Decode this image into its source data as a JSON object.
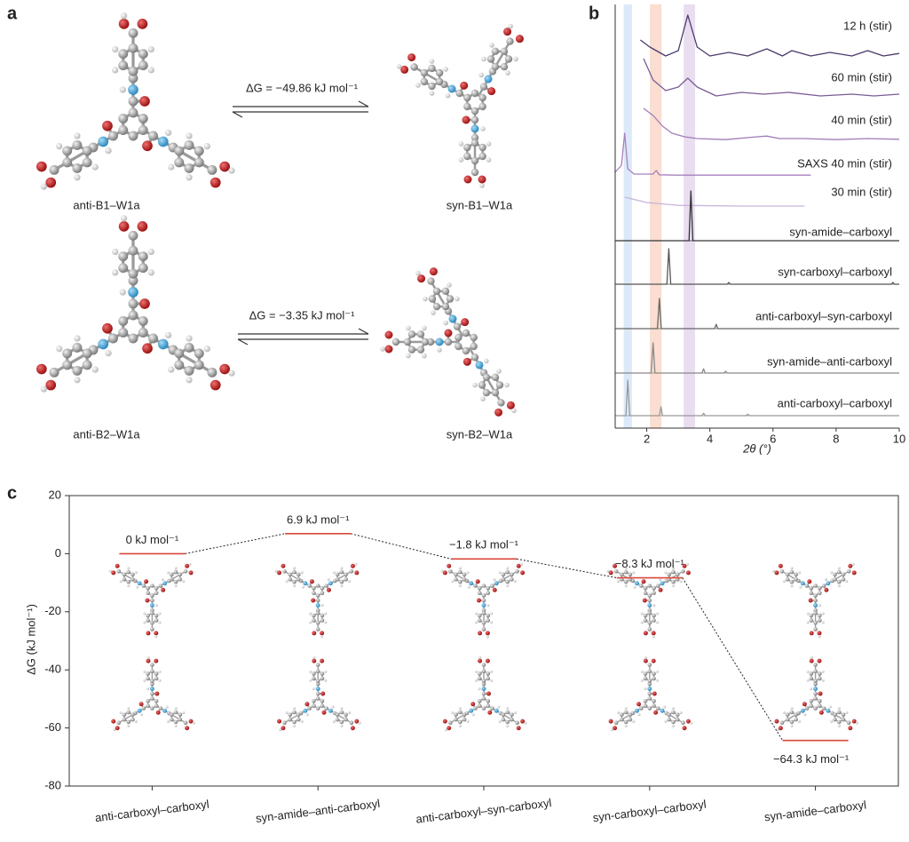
{
  "panel_labels": [
    "a",
    "b",
    "c"
  ],
  "reactions": [
    {
      "left": "anti-B1–W1a",
      "right": "syn-B1–W1a",
      "energy": "ΔG = −49.86 kJ mol⁻¹"
    },
    {
      "left": "anti-B2–W1a",
      "right": "syn-B2–W1a",
      "energy": "ΔG = −3.35 kJ mol⁻¹"
    }
  ],
  "chart_data": [
    {
      "type": "line",
      "xlabel": "2θ (°)",
      "xlim": [
        1,
        10
      ],
      "xticks": [
        2,
        4,
        6,
        8,
        10
      ],
      "bands": [
        {
          "x": [
            1.27,
            1.53
          ],
          "color": "#d3e3f6"
        },
        {
          "x": [
            2.1,
            2.47
          ],
          "color": "#f8d6c6"
        },
        {
          "x": [
            3.17,
            3.53
          ],
          "color": "#e2d6ec"
        }
      ],
      "series": [
        {
          "name": "12 h (stir)",
          "color": "#4b3a6b",
          "x": [
            1.8,
            2.1,
            2.6,
            3.0,
            3.3,
            3.6,
            4.0,
            4.6,
            5.2,
            5.8,
            6.3,
            6.6,
            7.2,
            7.8,
            8.5,
            9.0,
            9.5,
            10
          ],
          "values": [
            0.5,
            0.3,
            0.05,
            0.2,
            1.2,
            0.3,
            0.05,
            0.15,
            0.05,
            0.25,
            0.05,
            0.2,
            0.05,
            0.15,
            0.05,
            0.2,
            0.05,
            0.12
          ]
        },
        {
          "name": "60 min (stir)",
          "color": "#7a5c96",
          "x": [
            1.9,
            2.2,
            2.6,
            3.0,
            3.3,
            3.6,
            4.2,
            5.0,
            5.7,
            6.5,
            7.5,
            8.5,
            9.2,
            10
          ],
          "values": [
            1.1,
            0.5,
            0.2,
            0.3,
            0.55,
            0.3,
            0.05,
            0.15,
            0.1,
            0.15,
            0.05,
            0.1,
            0.05,
            0.1
          ]
        },
        {
          "name": "40 min (stir)",
          "color": "#a07cb8",
          "x": [
            1.9,
            2.2,
            2.5,
            2.8,
            3.2,
            3.6,
            4.5,
            5.5,
            5.8,
            6.2,
            7.0,
            8.0,
            9.0,
            10
          ],
          "values": [
            0.9,
            0.7,
            0.4,
            0.2,
            0.1,
            0.05,
            0.02,
            0.1,
            0.12,
            0.05,
            0.05,
            0.02,
            0.05,
            0.03
          ]
        },
        {
          "name": "SAXS 40 min (stir)",
          "color": "#a880c0",
          "x": [
            1.0,
            1.2,
            1.3,
            1.4,
            1.6,
            2.2,
            2.3,
            2.4,
            3.0,
            7.2
          ],
          "values": [
            0.1,
            0.3,
            1.2,
            0.2,
            0.05,
            0.05,
            0.15,
            0.03,
            0.02,
            0.02
          ]
        },
        {
          "name": "30 min (stir)",
          "color": "#c9b3d8",
          "x": [
            1.3,
            2.0,
            3.0,
            5.0,
            7.0
          ],
          "values": [
            0.25,
            0.1,
            0.02,
            0,
            0
          ]
        },
        {
          "name": "syn-amide–carboxyl",
          "color": "#333333",
          "x": [
            1.0,
            3.34,
            3.4,
            3.46,
            10
          ],
          "values": [
            0,
            0,
            1.4,
            0,
            0
          ]
        },
        {
          "name": "syn-carboxyl–carboxyl",
          "color": "#555555",
          "x": [
            1.0,
            2.64,
            2.7,
            2.76,
            4.55,
            4.6,
            4.65,
            9.75,
            9.8,
            9.85,
            10
          ],
          "values": [
            0,
            0,
            1.0,
            0,
            0,
            0.05,
            0,
            0,
            0.05,
            0,
            0
          ]
        },
        {
          "name": "anti-carboxyl–syn-carboxyl",
          "color": "#666666",
          "x": [
            1.0,
            2.34,
            2.4,
            2.46,
            4.15,
            4.2,
            4.25,
            10
          ],
          "values": [
            0,
            0,
            0.85,
            0,
            0,
            0.12,
            0,
            0
          ]
        },
        {
          "name": "syn-amide–anti-carboxyl",
          "color": "#888888",
          "x": [
            1.0,
            2.14,
            2.2,
            2.26,
            3.75,
            3.8,
            3.85,
            4.45,
            4.5,
            4.55,
            10
          ],
          "values": [
            0,
            0,
            0.85,
            0,
            0,
            0.12,
            0,
            0,
            0.05,
            0,
            0
          ]
        },
        {
          "name": "anti-carboxyl–carboxyl",
          "color": "#999999",
          "x": [
            1.0,
            1.34,
            1.4,
            1.46,
            2.4,
            2.45,
            2.5,
            3.75,
            3.8,
            3.85,
            5.15,
            5.2,
            5.25,
            10
          ],
          "values": [
            0,
            0,
            1.0,
            0,
            0,
            0.25,
            0,
            0,
            0.07,
            0,
            0,
            0.04,
            0,
            0
          ]
        }
      ]
    },
    {
      "type": "energy-level",
      "ylabel": "ΔG (kJ mol⁻¹)",
      "categories": [
        "anti-carboxyl–carboxyl",
        "syn-amide–anti-carboxyl",
        "anti-carboxyl–syn-carboxyl",
        "syn-carboxyl–carboxyl",
        "syn-amide–carboxyl"
      ],
      "label_colors": [
        "#222222",
        "#222222",
        "#222222",
        "#222222",
        "#c0392b"
      ],
      "values": [
        0,
        6.9,
        -1.8,
        -8.3,
        -64.3
      ],
      "value_labels": [
        "0 kJ mol⁻¹",
        "6.9 kJ mol⁻¹",
        "−1.8 kJ mol⁻¹",
        "−8.3 kJ mol⁻¹",
        "−64.3 kJ mol⁻¹"
      ],
      "color": "#d9473a",
      "ylim": [
        -80,
        20
      ],
      "yticks": [
        -80,
        -60,
        -40,
        -20,
        0,
        20
      ]
    }
  ]
}
